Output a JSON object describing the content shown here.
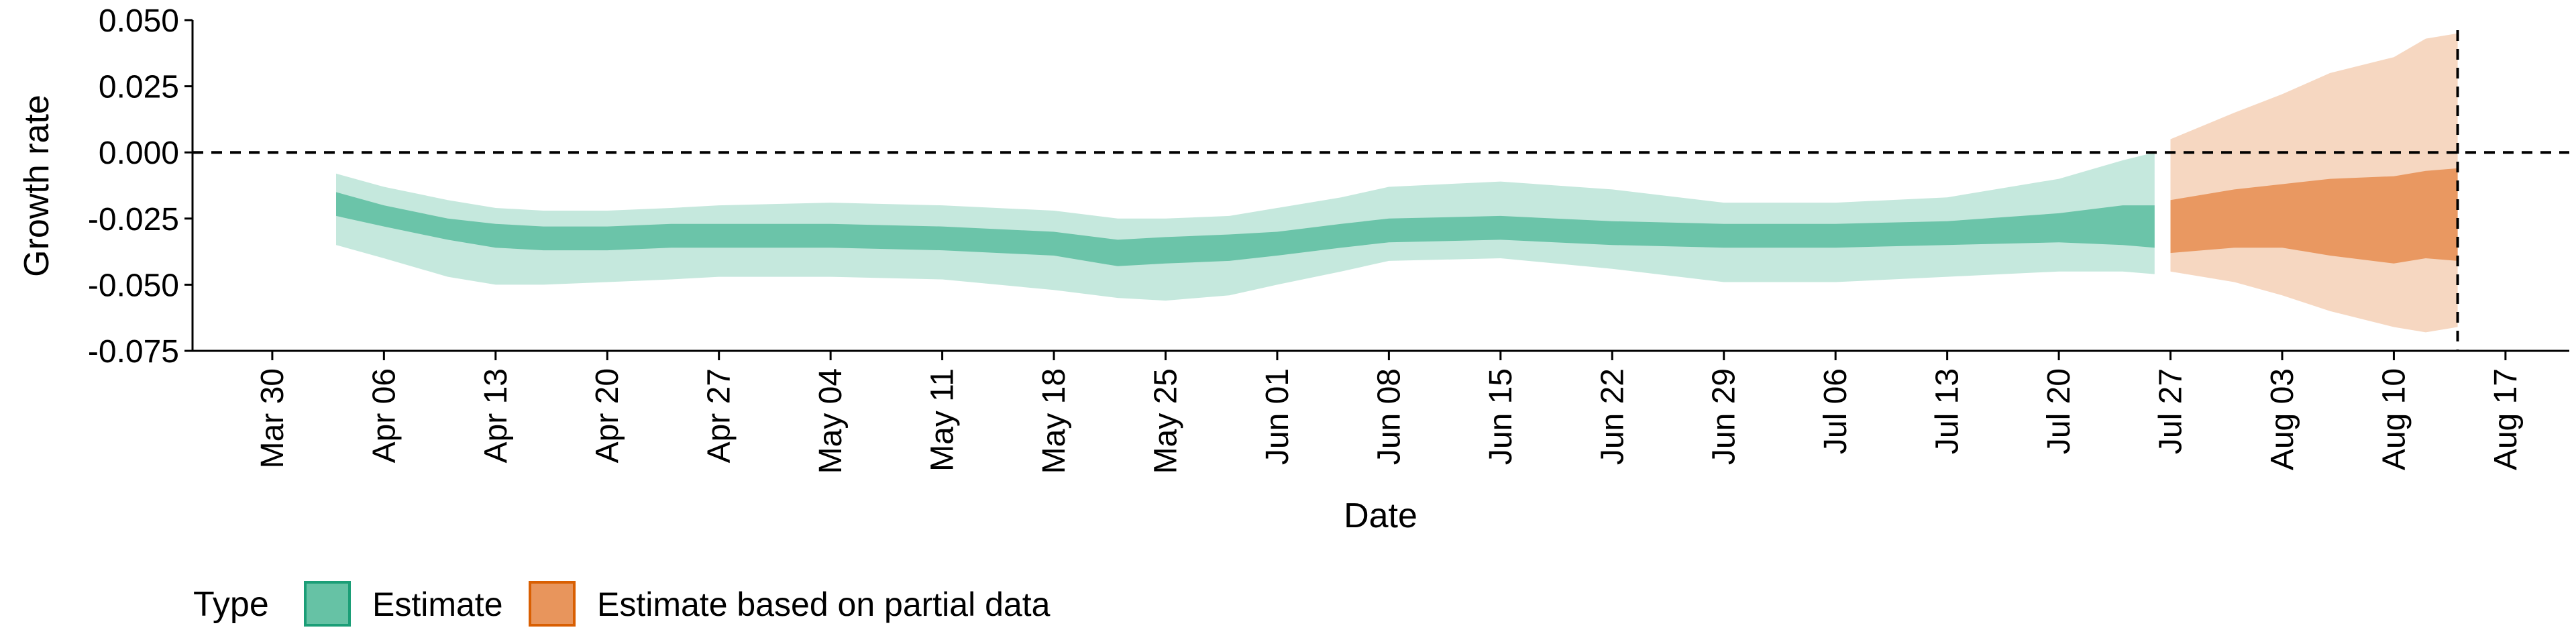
{
  "chart_data": {
    "type": "area",
    "xlabel": "Date",
    "ylabel": "Growth rate",
    "x_range": [
      "2020-03-25",
      "2020-08-21"
    ],
    "ylim": [
      -0.075,
      0.05
    ],
    "y_ticks": [
      {
        "value": 0.05,
        "label": "0.050"
      },
      {
        "value": 0.025,
        "label": "0.025"
      },
      {
        "value": 0,
        "label": "0.000"
      },
      {
        "value": -0.025,
        "label": "-0.025"
      },
      {
        "value": -0.05,
        "label": "-0.050"
      },
      {
        "value": -0.075,
        "label": "-0.075"
      }
    ],
    "x_ticks": [
      {
        "date": "2020-03-30",
        "label": "Mar 30"
      },
      {
        "date": "2020-04-06",
        "label": "Apr 06"
      },
      {
        "date": "2020-04-13",
        "label": "Apr 13"
      },
      {
        "date": "2020-04-20",
        "label": "Apr 20"
      },
      {
        "date": "2020-04-27",
        "label": "Apr 27"
      },
      {
        "date": "2020-05-04",
        "label": "May 04"
      },
      {
        "date": "2020-05-11",
        "label": "May 11"
      },
      {
        "date": "2020-05-18",
        "label": "May 18"
      },
      {
        "date": "2020-05-25",
        "label": "May 25"
      },
      {
        "date": "2020-06-01",
        "label": "Jun 01"
      },
      {
        "date": "2020-06-08",
        "label": "Jun 08"
      },
      {
        "date": "2020-06-15",
        "label": "Jun 15"
      },
      {
        "date": "2020-06-22",
        "label": "Jun 22"
      },
      {
        "date": "2020-06-29",
        "label": "Jun 29"
      },
      {
        "date": "2020-07-06",
        "label": "Jul 06"
      },
      {
        "date": "2020-07-13",
        "label": "Jul 13"
      },
      {
        "date": "2020-07-20",
        "label": "Jul 20"
      },
      {
        "date": "2020-07-27",
        "label": "Jul 27"
      },
      {
        "date": "2020-08-03",
        "label": "Aug 03"
      },
      {
        "date": "2020-08-10",
        "label": "Aug 10"
      },
      {
        "date": "2020-08-17",
        "label": "Aug 17"
      }
    ],
    "reference_lines": [
      {
        "type": "horizontal",
        "y": 0
      },
      {
        "type": "vertical",
        "date": "2020-08-14"
      }
    ],
    "grid": false,
    "legend": {
      "title": "Type",
      "position": "bottom-left",
      "entries": [
        {
          "label": "Estimate",
          "color": "#66c2a5",
          "border": "#1b9e77"
        },
        {
          "label": "Estimate based on partial data",
          "color": "#e8955c",
          "border": "#d95f02"
        }
      ]
    },
    "series": [
      {
        "type_key": "Estimate",
        "color": "#66c2a5",
        "points": [
          {
            "date": "2020-04-03",
            "lower90": -0.035,
            "lower50": -0.024,
            "upper50": -0.015,
            "upper90": -0.008
          },
          {
            "date": "2020-04-06",
            "lower90": -0.04,
            "lower50": -0.028,
            "upper50": -0.02,
            "upper90": -0.013
          },
          {
            "date": "2020-04-10",
            "lower90": -0.047,
            "lower50": -0.033,
            "upper50": -0.025,
            "upper90": -0.018
          },
          {
            "date": "2020-04-13",
            "lower90": -0.05,
            "lower50": -0.036,
            "upper50": -0.027,
            "upper90": -0.021
          },
          {
            "date": "2020-04-16",
            "lower90": -0.05,
            "lower50": -0.037,
            "upper50": -0.028,
            "upper90": -0.022
          },
          {
            "date": "2020-04-20",
            "lower90": -0.049,
            "lower50": -0.037,
            "upper50": -0.028,
            "upper90": -0.022
          },
          {
            "date": "2020-04-24",
            "lower90": -0.048,
            "lower50": -0.036,
            "upper50": -0.027,
            "upper90": -0.021
          },
          {
            "date": "2020-04-27",
            "lower90": -0.047,
            "lower50": -0.036,
            "upper50": -0.027,
            "upper90": -0.02
          },
          {
            "date": "2020-05-04",
            "lower90": -0.047,
            "lower50": -0.036,
            "upper50": -0.027,
            "upper90": -0.019
          },
          {
            "date": "2020-05-11",
            "lower90": -0.048,
            "lower50": -0.037,
            "upper50": -0.028,
            "upper90": -0.02
          },
          {
            "date": "2020-05-18",
            "lower90": -0.052,
            "lower50": -0.039,
            "upper50": -0.03,
            "upper90": -0.022
          },
          {
            "date": "2020-05-22",
            "lower90": -0.055,
            "lower50": -0.043,
            "upper50": -0.033,
            "upper90": -0.025
          },
          {
            "date": "2020-05-25",
            "lower90": -0.056,
            "lower50": -0.042,
            "upper50": -0.032,
            "upper90": -0.025
          },
          {
            "date": "2020-05-29",
            "lower90": -0.054,
            "lower50": -0.041,
            "upper50": -0.031,
            "upper90": -0.024
          },
          {
            "date": "2020-06-01",
            "lower90": -0.05,
            "lower50": -0.039,
            "upper50": -0.03,
            "upper90": -0.021
          },
          {
            "date": "2020-06-05",
            "lower90": -0.045,
            "lower50": -0.036,
            "upper50": -0.027,
            "upper90": -0.017
          },
          {
            "date": "2020-06-08",
            "lower90": -0.041,
            "lower50": -0.034,
            "upper50": -0.025,
            "upper90": -0.013
          },
          {
            "date": "2020-06-15",
            "lower90": -0.04,
            "lower50": -0.033,
            "upper50": -0.024,
            "upper90": -0.011
          },
          {
            "date": "2020-06-22",
            "lower90": -0.044,
            "lower50": -0.035,
            "upper50": -0.026,
            "upper90": -0.014
          },
          {
            "date": "2020-06-29",
            "lower90": -0.049,
            "lower50": -0.036,
            "upper50": -0.027,
            "upper90": -0.019
          },
          {
            "date": "2020-07-06",
            "lower90": -0.049,
            "lower50": -0.036,
            "upper50": -0.027,
            "upper90": -0.019
          },
          {
            "date": "2020-07-13",
            "lower90": -0.047,
            "lower50": -0.035,
            "upper50": -0.026,
            "upper90": -0.017
          },
          {
            "date": "2020-07-20",
            "lower90": -0.045,
            "lower50": -0.034,
            "upper50": -0.023,
            "upper90": -0.01
          },
          {
            "date": "2020-07-24",
            "lower90": -0.045,
            "lower50": -0.035,
            "upper50": -0.02,
            "upper90": -0.003
          },
          {
            "date": "2020-07-26",
            "lower90": -0.046,
            "lower50": -0.036,
            "upper50": -0.02,
            "upper90": 0.0
          }
        ]
      },
      {
        "type_key": "Estimate based on partial data",
        "color": "#e8955c",
        "points": [
          {
            "date": "2020-07-27",
            "lower90": -0.045,
            "lower50": -0.038,
            "upper50": -0.018,
            "upper90": 0.005
          },
          {
            "date": "2020-07-31",
            "lower90": -0.049,
            "lower50": -0.036,
            "upper50": -0.014,
            "upper90": 0.015
          },
          {
            "date": "2020-08-03",
            "lower90": -0.054,
            "lower50": -0.036,
            "upper50": -0.012,
            "upper90": 0.022
          },
          {
            "date": "2020-08-06",
            "lower90": -0.06,
            "lower50": -0.039,
            "upper50": -0.01,
            "upper90": 0.03
          },
          {
            "date": "2020-08-10",
            "lower90": -0.066,
            "lower50": -0.042,
            "upper50": -0.009,
            "upper90": 0.036
          },
          {
            "date": "2020-08-12",
            "lower90": -0.068,
            "lower50": -0.04,
            "upper50": -0.007,
            "upper90": 0.043
          },
          {
            "date": "2020-08-14",
            "lower90": -0.066,
            "lower50": -0.041,
            "upper50": -0.006,
            "upper90": 0.045
          }
        ]
      }
    ]
  }
}
